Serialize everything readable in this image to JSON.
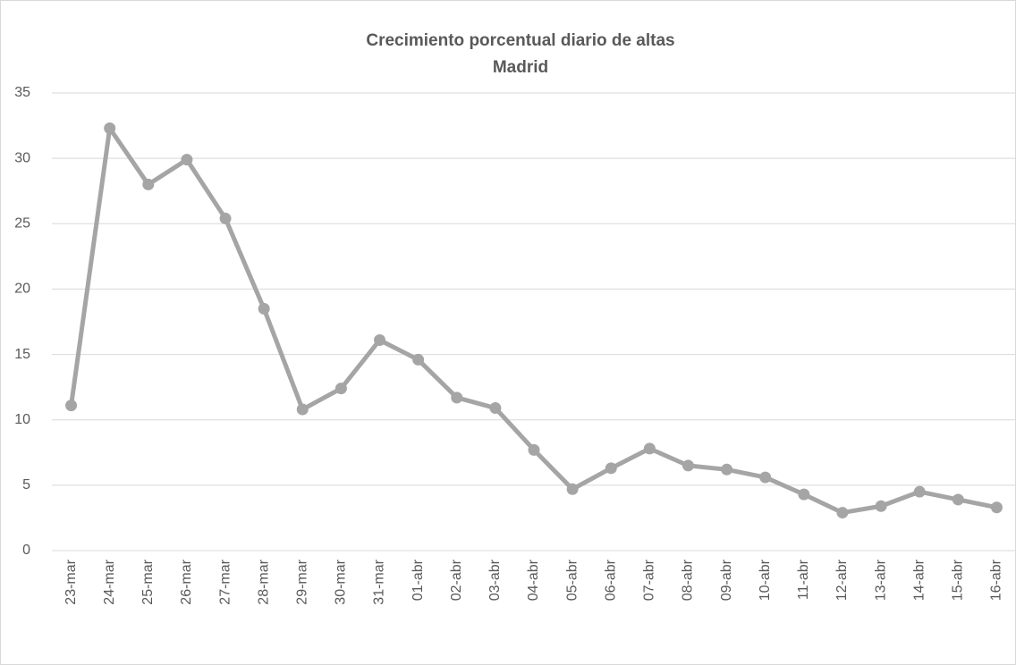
{
  "chart_data": {
    "type": "line",
    "title": "Crecimiento porcentual diario de altas",
    "subtitle": "Madrid",
    "categories": [
      "23-mar",
      "24-mar",
      "25-mar",
      "26-mar",
      "27-mar",
      "28-mar",
      "29-mar",
      "30-mar",
      "31-mar",
      "01-abr",
      "02-abr",
      "03-abr",
      "04-abr",
      "05-abr",
      "06-abr",
      "07-abr",
      "08-abr",
      "09-abr",
      "10-abr",
      "11-abr",
      "12-abr",
      "13-abr",
      "14-abr",
      "15-abr",
      "16-abr"
    ],
    "values": [
      11.1,
      32.3,
      28.0,
      29.9,
      25.4,
      18.5,
      10.8,
      12.4,
      16.1,
      14.6,
      11.7,
      10.9,
      7.7,
      4.7,
      6.3,
      7.8,
      6.5,
      6.2,
      5.6,
      4.3,
      2.9,
      3.4,
      4.5,
      3.9,
      3.3
    ],
    "color": "#a5a5a5",
    "ylim": [
      0,
      35
    ],
    "yticks": [
      0,
      5,
      10,
      15,
      20,
      25,
      30,
      35
    ],
    "grid": true
  }
}
